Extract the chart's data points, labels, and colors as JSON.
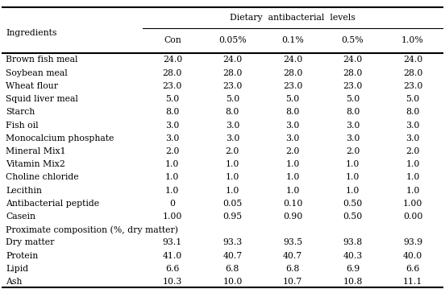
{
  "header_top": "Dietary  antibacterial  levels",
  "col_headers": [
    "Ingredients",
    "Con",
    "0.05%",
    "0.1%",
    "0.5%",
    "1.0%"
  ],
  "rows": [
    [
      "Brown fish meal",
      "24.0",
      "24.0",
      "24.0",
      "24.0",
      "24.0"
    ],
    [
      "Soybean meal",
      "28.0",
      "28.0",
      "28.0",
      "28.0",
      "28.0"
    ],
    [
      "Wheat flour",
      "23.0",
      "23.0",
      "23.0",
      "23.0",
      "23.0"
    ],
    [
      "Squid liver meal",
      "5.0",
      "5.0",
      "5.0",
      "5.0",
      "5.0"
    ],
    [
      "Starch",
      "8.0",
      "8.0",
      "8.0",
      "8.0",
      "8.0"
    ],
    [
      "Fish oil",
      "3.0",
      "3.0",
      "3.0",
      "3.0",
      "3.0"
    ],
    [
      "Monocalcium phosphate",
      "3.0",
      "3.0",
      "3.0",
      "3.0",
      "3.0"
    ],
    [
      "Mineral Mix1",
      "2.0",
      "2.0",
      "2.0",
      "2.0",
      "2.0"
    ],
    [
      "Vitamin Mix2",
      "1.0",
      "1.0",
      "1.0",
      "1.0",
      "1.0"
    ],
    [
      "Choline chloride",
      "1.0",
      "1.0",
      "1.0",
      "1.0",
      "1.0"
    ],
    [
      "Lecithin",
      "1.0",
      "1.0",
      "1.0",
      "1.0",
      "1.0"
    ],
    [
      "Antibacterial peptide",
      "0",
      "0.05",
      "0.10",
      "0.50",
      "1.00"
    ],
    [
      "Casein",
      "1.00",
      "0.95",
      "0.90",
      "0.50",
      "0.00"
    ],
    [
      "Proximate composition (%, dry matter)",
      "",
      "",
      "",
      "",
      ""
    ],
    [
      "Dry matter",
      "93.1",
      "93.3",
      "93.5",
      "93.8",
      "93.9"
    ],
    [
      "Protein",
      "41.0",
      "40.7",
      "40.7",
      "40.3",
      "40.0"
    ],
    [
      "Lipid",
      "6.6",
      "6.8",
      "6.8",
      "6.9",
      "6.6"
    ],
    [
      "Ash",
      "10.3",
      "10.0",
      "10.7",
      "10.8",
      "11.1"
    ]
  ],
  "bg_color": "#ffffff",
  "text_color": "#000000",
  "font_size": 7.8,
  "figsize": [
    5.52,
    3.64
  ],
  "dpi": 100
}
